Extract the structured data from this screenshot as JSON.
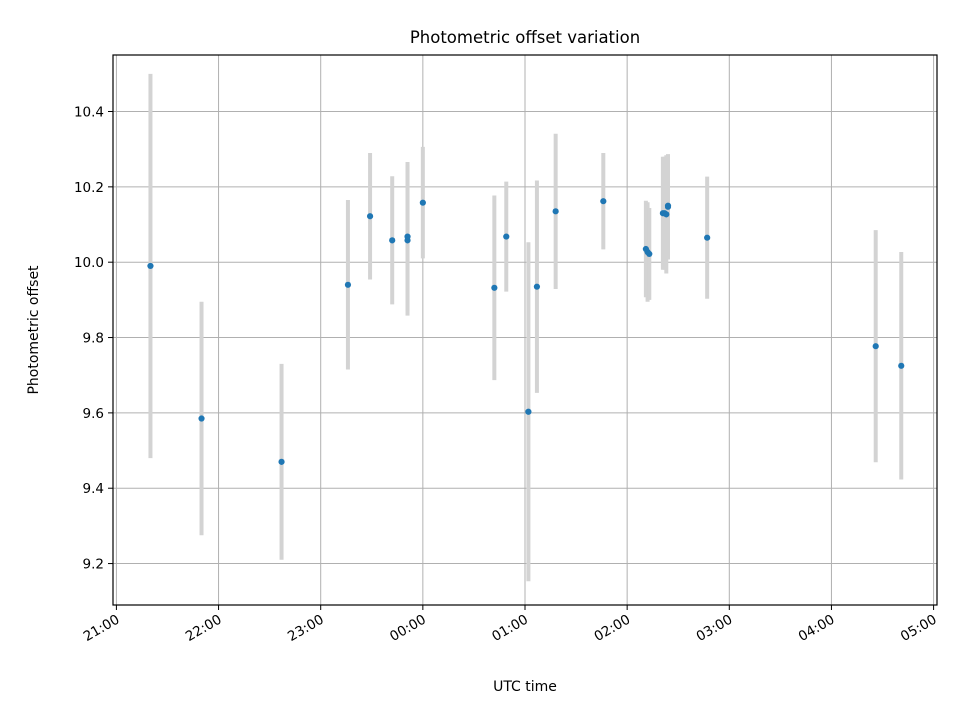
{
  "chart_data": {
    "type": "scatter",
    "title": "Photometric offset variation",
    "xlabel": "UTC time",
    "ylabel": "Photometric offset",
    "x_ticks": [
      "21:00",
      "22:00",
      "23:00",
      "00:00",
      "01:00",
      "02:00",
      "03:00",
      "04:00",
      "05:00"
    ],
    "y_ticks": [
      "9.2",
      "9.4",
      "9.6",
      "9.8",
      "10.0",
      "10.2",
      "10.4"
    ],
    "xlim": [
      "20:58",
      "05:02"
    ],
    "ylim": [
      9.09,
      10.55
    ],
    "grid": true,
    "marker_color": "#1f77b4",
    "errorbar_color": "#d3d3d3",
    "points": [
      {
        "time": "21:20",
        "y": 9.99,
        "err": 0.51
      },
      {
        "time": "21:50",
        "y": 9.585,
        "err": 0.31
      },
      {
        "time": "22:37",
        "y": 9.47,
        "err": 0.26
      },
      {
        "time": "23:16",
        "y": 9.94,
        "err": 0.225
      },
      {
        "time": "23:29",
        "y": 10.122,
        "err": 0.168
      },
      {
        "time": "23:42",
        "y": 10.058,
        "err": 0.17
      },
      {
        "time": "23:51",
        "y": 10.058,
        "err": 0.2
      },
      {
        "time": "23:51",
        "y": 10.068,
        "err": 0.198
      },
      {
        "time": "00:00",
        "y": 10.158,
        "err": 0.148
      },
      {
        "time": "00:42",
        "y": 9.932,
        "err": 0.245
      },
      {
        "time": "00:49",
        "y": 10.068,
        "err": 0.146
      },
      {
        "time": "01:02",
        "y": 9.603,
        "err": 0.45
      },
      {
        "time": "01:07",
        "y": 9.935,
        "err": 0.282
      },
      {
        "time": "01:18",
        "y": 10.135,
        "err": 0.206
      },
      {
        "time": "01:46",
        "y": 10.162,
        "err": 0.128
      },
      {
        "time": "02:11",
        "y": 10.035,
        "err": 0.128
      },
      {
        "time": "02:12",
        "y": 10.027,
        "err": 0.132
      },
      {
        "time": "02:13",
        "y": 10.022,
        "err": 0.122
      },
      {
        "time": "02:21",
        "y": 10.13,
        "err": 0.15
      },
      {
        "time": "02:22",
        "y": 10.13,
        "err": 0.15
      },
      {
        "time": "02:23",
        "y": 10.127,
        "err": 0.157
      },
      {
        "time": "02:24",
        "y": 10.147,
        "err": 0.14
      },
      {
        "time": "02:24",
        "y": 10.15,
        "err": 0.125
      },
      {
        "time": "02:47",
        "y": 10.065,
        "err": 0.162
      },
      {
        "time": "04:26",
        "y": 9.777,
        "err": 0.308
      },
      {
        "time": "04:41",
        "y": 9.725,
        "err": 0.302
      }
    ]
  }
}
